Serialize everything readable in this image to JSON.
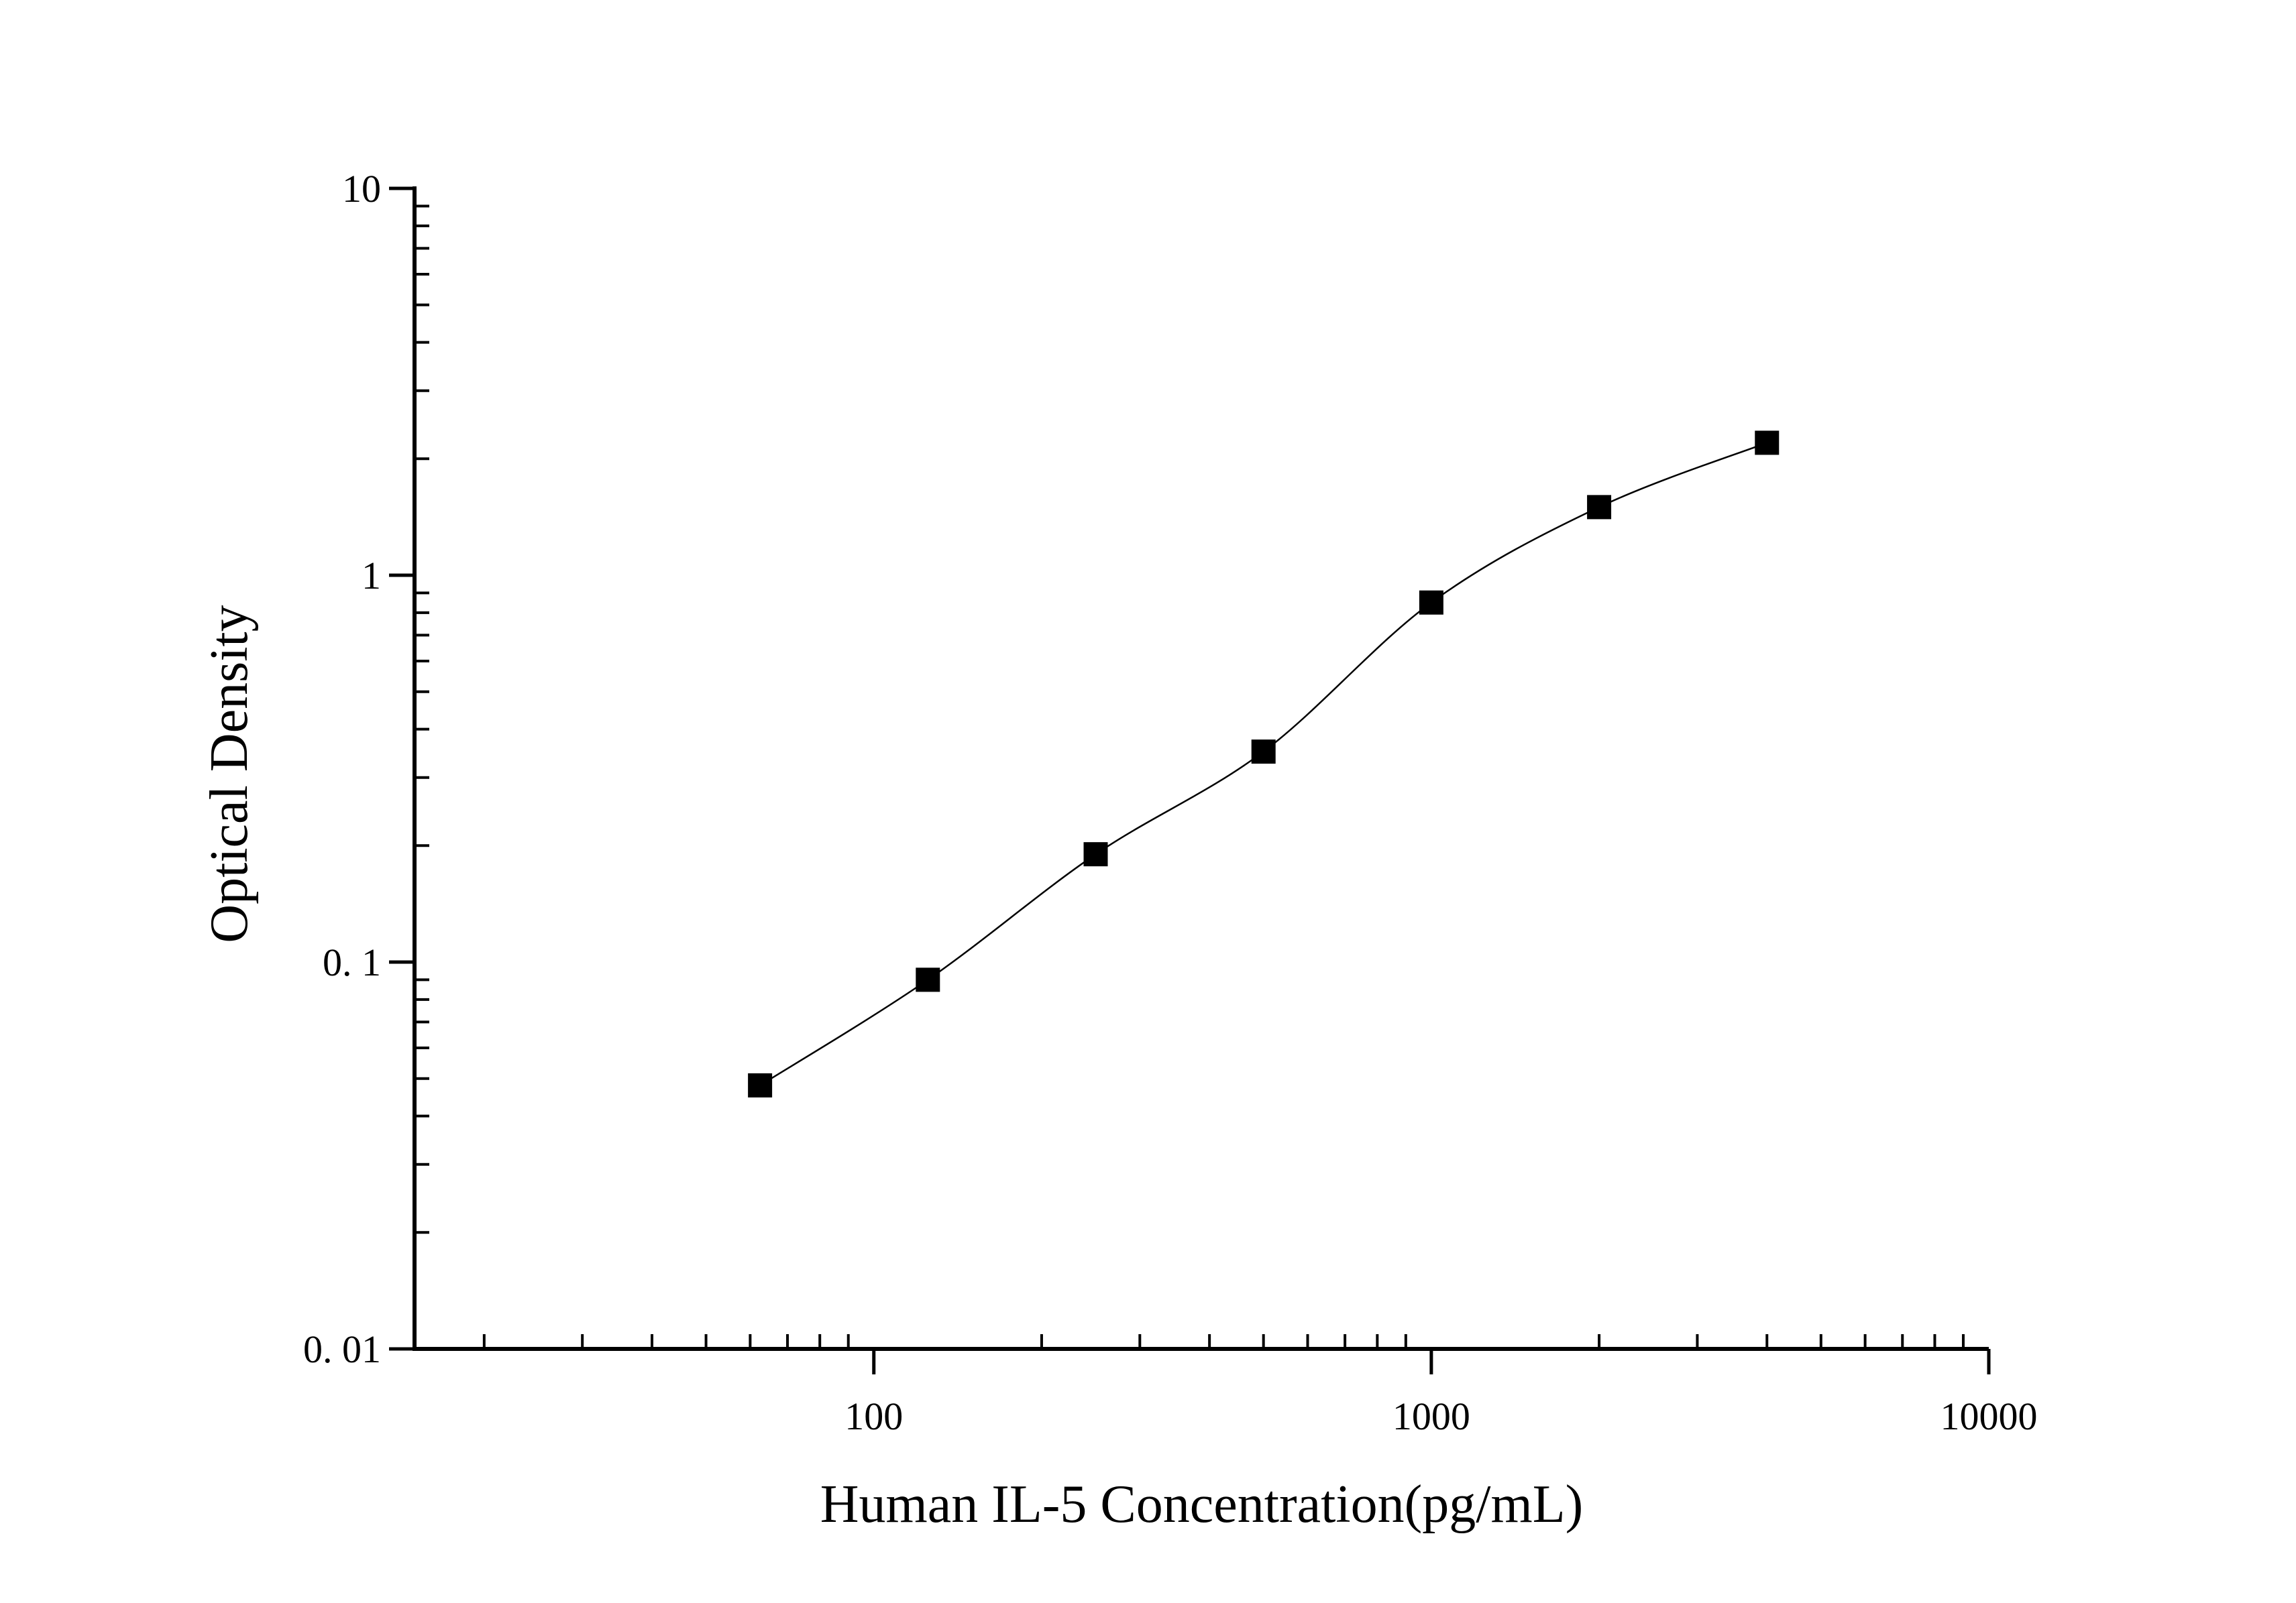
{
  "chart_data": {
    "type": "scatter",
    "title": "",
    "xlabel": "Human IL-5 Concentration(pg/mL)",
    "ylabel": "Optical Density",
    "x_scale": "log",
    "y_scale": "log",
    "xlim": [
      15,
      10000
    ],
    "ylim": [
      0.01,
      10
    ],
    "x_ticks": [
      {
        "value": 100,
        "label": "100"
      },
      {
        "value": 1000,
        "label": "1000"
      },
      {
        "value": 10000,
        "label": "10000"
      }
    ],
    "y_ticks": [
      {
        "value": 0.01,
        "label": "0. 01"
      },
      {
        "value": 0.1,
        "label": "0. 1"
      },
      {
        "value": 1,
        "label": "1"
      },
      {
        "value": 10,
        "label": "10"
      }
    ],
    "grid": false,
    "legend": "none",
    "series": [
      {
        "marker": "square",
        "color": "#000000",
        "line": "smooth fit",
        "x": [
          62.5,
          125,
          250,
          500,
          1000,
          2000,
          4000
        ],
        "y": [
          0.048,
          0.09,
          0.19,
          0.35,
          0.85,
          1.5,
          2.2
        ]
      }
    ]
  }
}
